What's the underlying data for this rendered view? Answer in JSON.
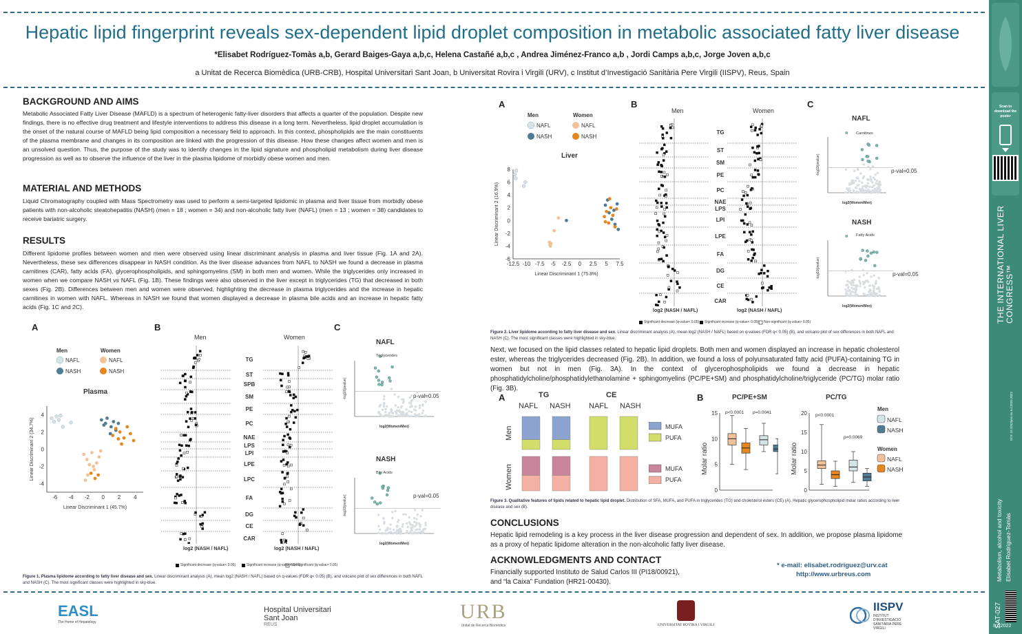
{
  "poster": {
    "title": "Hepatic lipid fingerprint reveals sex-dependent lipid droplet composition in metabolic associated fatty liver disease",
    "authors": "*Elisabet Rodríguez-Tomàs a,b, Gerard Baiges-Gaya a,b,c, Helena Castañé a,b,c , Andrea Jiménez-Franco a,b , Jordi Camps a,b,c, Jorge Joven a,b,c",
    "affiliations": "a Unitat de Recerca Biomèdica (URB-CRB), Hospital Universitari Sant Joan, b Universitat Rovira i Virgili (URV), c Institut d’Investigació Sanitària Pere Virgili (IISPV), Reus, Spain"
  },
  "sections": {
    "background": {
      "heading": "BACKGROUND AND AIMS",
      "text": "Metabolic Associated Fatty Liver Disease (MAFLD) is a spectrum of heterogenic fatty-liver disorders that affects a quarter of the population. Despite new findings, there is no effective drug treatment and lifestyle interventions to address this disease in a long term. Nevertheless, lipid droplet accumulation is the onset of the natural course of MAFLD being lipid composition a necessary field to approach. In this context, phospholipids are the main constituents of the plasma membrane and changes in its composition are linked with the progression of this disease. How these changes affect women and men is an unsolved question. Thus, the purpose of the study was to identify changes in the lipid signature and phospholipid metabolism during liver disease progression as well as to observe the influence of the liver in the plasma lipidome of morbidly obese women and men."
    },
    "methods": {
      "heading": "MATERIAL AND METHODS",
      "text": "Liquid Chromatography coupled with Mass Spectrometry was used to perform a semi-targeted lipidomic in plasma and liver tissue from morbidly obese patients with non-alcoholic steatohepatitis (NASH) (men = 18 ; women = 34) and non-alcoholic fatty liver (NAFL) (men = 13 ; women = 38) candidates to receive bariatric surgery."
    },
    "results": {
      "heading": "RESULTS",
      "text": "Different lipidome profiles between women and men were observed using linear discriminant analysis in plasma and liver tissue (Fig. 1A and 2A). Nevertheless, these sex differences disappear in NASH condition. As the liver disease advances from NAFL to NASH we found a decrease in plasma carnitines (CAR), fatty acids (FA), glycerophospholipids, and sphingomyelins (SM) in both men and women. While the triglycerides only increased in women when we compare NASH vs NAFL (Fig. 1B). These findings were also observed in the liver except in triglycerides (TG) that decreased in both sexes (Fig. 2B). Differences between men and women were observed, highlighting the decrease in plasma triglycerides and the increase in hepatic carnitines in women with NAFL. Whereas in NASH we found that women displayed a decrease in plasma bile acids and an increase in hepatic fatty acids (Fig. 1C and 2C)."
    },
    "next": "Next, we focused on the lipid classes related to hepatic lipid droplets. Both men and women displayed an increase in hepatic cholesterol ester, whereas the triglycerides decreased (Fig. 2B). In addition, we found a loss of polyunsaturated fatty acid (PUFA)-containing TG in women but not in men (Fig. 3A). In the context of glycerophospholipids we found a decrease in hepatic phosphatidylcholine/phosphatidylethanolamine + sphingomyelins (PC/PE+SM) and phosphatidylcholine/triglyceride (PC/TG) molar ratio (Fig. 3B).",
    "conclusions": {
      "heading": "CONCLUSIONS",
      "text": "Hepatic lipid remodeling is a key process in the liver disease progression and dependent of sex. In addition, we propose plasma lipidome as a proxy of hepatic lipidome alteration in the non-alcoholic fatty liver disease."
    },
    "ack": {
      "heading": "ACKNOWLEDGMENTS AND CONTACT",
      "line1": "Financially supported Instituto de Salud Carlos III (PI18/00921),",
      "line2": "and “la Caixa” Fundation (HR21-00430).",
      "email": "* e-mail: elisabet.rodriguez@urv.cat",
      "web": "http://www.urbreus.com"
    }
  },
  "fig1": {
    "panels": [
      "A",
      "B",
      "C"
    ],
    "legend_men": "Men",
    "legend_women": "Women",
    "nafl": "NAFL",
    "nash": "NASH",
    "title": "Plasma",
    "xlabel": "Linear Discriminant 1 (45.7%)",
    "ylabel": "Linear Discriminant 2 (34.7%)",
    "b_men": "Men",
    "b_women": "Women",
    "b_xlabel": "log2 (NASH / NAFL)",
    "classes": [
      "TG",
      "ST",
      "SPB",
      "SM",
      "PE",
      "PC",
      "NAE",
      "LPS",
      "LPI",
      "LPE",
      "LPC",
      "FA",
      "DG",
      "CE",
      "CAR"
    ],
    "volcano_nafl_title": "NAFL",
    "volcano_nafl_legend": "Triglycerides",
    "volcano_nash_title": "NASH",
    "volcano_nash_legend": "Bile Acids",
    "pval": "p-val=0.05",
    "volcano_xlabel": "log2(Women/Men)",
    "volcano_ylabel": "-log10(pvalue)",
    "key": [
      "Significant decrease (q-value< 0.05)",
      "Significant increase (q-value< 0.05)",
      "Non-significant (q-value> 0.05)"
    ],
    "caption_bold": "Figure 1. Plasma lipidome according to fatty liver disease and sex.",
    "caption": "Linear discriminant analysis (A), mean log2 (NASH / NAFL) based on q-values (FDR q< 0.05) (B), and volcano plot of sex differences in both NAFL and NASH (C). The most significant classes were highlighted in sky-blue."
  },
  "fig2": {
    "title": "Liver",
    "xlabel": "Linear Discriminant 1 (75.8%)",
    "ylabel": "Linear Discriminant 2 (16.9%)",
    "classes": [
      "TG",
      "ST",
      "SM",
      "PE",
      "PC",
      "NAE",
      "LPS",
      "LPI",
      "LPE",
      "FA",
      "DG",
      "CE",
      "CAR"
    ],
    "volcano_nafl_legend": "Carnitines",
    "volcano_nash_legend": "Fatty Acids",
    "caption_bold": "Figure 2. Liver lipidome according to fatty liver disease and sex.",
    "caption": "Linear discriminant analysis (A), mean log2 (NASH / NAFL) based on q-values (FDR q< 0.05) (B), and volcano plot of sex differences in both NAFL and NASH (C). The most significant classes were highlighted in sky-blue."
  },
  "fig3": {
    "tg": "TG",
    "ce": "CE",
    "nafl": "NAFL",
    "nash": "NASH",
    "men": "Men",
    "women": "Women",
    "mufa": "MUFA",
    "pufa": "PUFA",
    "b1_title": "PC/PE+SM",
    "b2_title": "PC/TG",
    "ylabel": "Molar ratio",
    "p1": "p<0.0001",
    "p2": "p=0.0041",
    "p3": "p<0.0001",
    "p4": "p=0.0069",
    "caption_bold": "Figure 3. Qualitative features of lipids related to hepatic lipid droplet.",
    "caption": "Distribution of SFA, MUFA, and PUFA in triglycerides (TG) and cholesterol esters (CE) (A). Hepatic glycerophospholipid molar ratios according to liver disease and sex (B)."
  },
  "chart_data": [
    {
      "type": "scatter",
      "title": "Plasma",
      "xlabel": "Linear Discriminant 1 (45.7%)",
      "ylabel": "Linear Discriminant 2 (34.7%)",
      "xlim": [
        -7,
        5
      ],
      "ylim": [
        -5,
        5
      ],
      "series": [
        {
          "name": "Men NAFL",
          "x": [
            -6.4,
            -6.1,
            -5.8,
            -5.5,
            -5.3,
            -4.0,
            -5.0
          ],
          "y": [
            3.6,
            3.2,
            3.8,
            3.4,
            3.9,
            3.1,
            2.6
          ]
        },
        {
          "name": "Men NASH",
          "x": [
            -0.2,
            0.3,
            0.5,
            1.0,
            1.3,
            1.6,
            0.9,
            0.1,
            1.9
          ],
          "y": [
            3.4,
            3.0,
            3.6,
            2.6,
            3.2,
            2.2,
            1.8,
            2.8,
            3.0
          ]
        },
        {
          "name": "Women NAFL",
          "x": [
            -2.4,
            -2.0,
            -1.7,
            -1.4,
            -1.1,
            -0.8,
            -0.5,
            -1.9,
            -2.2,
            -1.2,
            -0.3
          ],
          "y": [
            -0.6,
            -1.2,
            -1.8,
            -0.4,
            -2.4,
            -1.6,
            -0.9,
            -3.0,
            -3.6,
            -2.0,
            -0.2
          ]
        },
        {
          "name": "Women NASH",
          "x": [
            1.2,
            1.6,
            2.1,
            2.6,
            3.0,
            3.4,
            3.8,
            2.3,
            1.9,
            -0.6,
            -1.0,
            -1.5
          ],
          "y": [
            1.6,
            2.4,
            2.0,
            1.3,
            2.6,
            1.8,
            1.0,
            0.6,
            1.2,
            -3.0,
            -3.4,
            -2.8
          ]
        }
      ]
    },
    {
      "type": "scatter",
      "title": "Liver",
      "xlabel": "Linear Discriminant 1 (75.8%)",
      "ylabel": "Linear Discriminant 2 (16.9%)",
      "xlim": [
        -12.5,
        7.5
      ],
      "ylim": [
        -6,
        8
      ],
      "series": [
        {
          "name": "Men NAFL",
          "x": [
            -12.2,
            -12.0,
            -11.9,
            -10.5,
            -10.2
          ],
          "y": [
            7.2,
            6.6,
            7.8,
            5.4,
            6.0
          ]
        },
        {
          "name": "Men NASH",
          "x": [
            -2.5,
            4.8,
            5.5,
            6.0,
            6.6,
            7.2,
            5.2,
            6.4,
            7.0
          ],
          "y": [
            0.0,
            2.4,
            1.2,
            0.2,
            -0.6,
            -1.4,
            3.2,
            1.6,
            2.6
          ]
        },
        {
          "name": "Women NAFL",
          "x": [
            -5.7,
            -5.6,
            -5.4,
            -5.5,
            -4.8,
            -4.0
          ],
          "y": [
            -3.4,
            -3.8,
            -3.6,
            -4.0,
            -1.6,
            0.4
          ]
        },
        {
          "name": "Women NASH",
          "x": [
            4.6,
            5.0,
            5.4,
            5.8,
            6.2,
            6.6,
            5.6,
            6.9,
            4.8
          ],
          "y": [
            0.6,
            1.4,
            -0.4,
            2.0,
            0.8,
            -1.0,
            3.4,
            1.8,
            -0.2
          ]
        }
      ]
    },
    {
      "type": "bar",
      "title": "TG",
      "categories": [
        "Men NAFL",
        "Men NASH",
        "Women NAFL",
        "Women NASH"
      ],
      "series": [
        {
          "name": "MUFA",
          "values": [
            0.7,
            0.7,
            0.55,
            0.55
          ]
        },
        {
          "name": "PUFA",
          "values": [
            0.3,
            0.3,
            0.3,
            0.22
          ]
        }
      ]
    },
    {
      "type": "bar",
      "title": "CE",
      "categories": [
        "Men NAFL",
        "Men NASH",
        "Women NAFL",
        "Women NASH"
      ],
      "series": [
        {
          "name": "PUFA",
          "values": [
            1.0,
            1.0,
            1.0,
            1.0
          ]
        }
      ]
    },
    {
      "type": "box",
      "title": "PC/PE+SM",
      "ylabel": "Molar ratio",
      "ylim": [
        0,
        15
      ],
      "series": [
        {
          "name": "Women NAFL",
          "min": 5,
          "q1": 8.8,
          "median": 10.0,
          "q3": 11.0,
          "max": 14.5
        },
        {
          "name": "Women NASH",
          "min": 4,
          "q1": 7.2,
          "median": 8.2,
          "q3": 9.2,
          "max": 12.0
        },
        {
          "name": "Men NAFL",
          "min": 7.5,
          "q1": 8.8,
          "median": 9.8,
          "q3": 10.6,
          "max": 13.0
        },
        {
          "name": "Men NASH",
          "min": 3.2,
          "q1": 7.5,
          "median": 8.0,
          "q3": 8.8,
          "max": 10.0
        }
      ]
    },
    {
      "type": "box",
      "title": "PC/TG",
      "ylabel": "Molar ratio",
      "ylim": [
        0,
        20
      ],
      "series": [
        {
          "name": "Women NAFL",
          "min": 1.5,
          "q1": 5.6,
          "median": 6.5,
          "q3": 7.6,
          "max": 17
        },
        {
          "name": "Women NASH",
          "min": 1.0,
          "q1": 3.0,
          "median": 4.0,
          "q3": 5.0,
          "max": 7.5
        },
        {
          "name": "Men NAFL",
          "min": 2.0,
          "q1": 5.0,
          "median": 6.0,
          "q3": 7.8,
          "max": 10.0
        },
        {
          "name": "Men NASH",
          "min": 1.0,
          "q1": 2.4,
          "median": 3.4,
          "q3": 4.4,
          "max": 5.6
        }
      ]
    }
  ],
  "sidebar": {
    "scan": "Scan to download the poster",
    "congress": "THE INTERNATIONAL LIVER CONGRESS™",
    "topic": "Metabolism, alcohol and toxicity",
    "presenter": "Elisabet Rodríguez-Tomàs",
    "code": "SAT-027",
    "year": "ILC2022",
    "doi": "DOI: 10.3252/pso.eu.ILC2022.2022"
  },
  "logos": {
    "easl": "EASL",
    "easl_sub": "The Home of Hepatology",
    "hosp1": "Hospital Universitari",
    "hosp2": "Sant Joan",
    "hosp3": "REUS",
    "urb": "URB",
    "urb_sub": "Unitat de Recerca Biomèdica",
    "urv": "UNIVERSITAT ROVIRA I VIRGILI",
    "iispv": "IISPV",
    "iispv_sub": "INSTITUT D'INVESTIGACIÓ SANITÀRIA PERE VIRGILI"
  },
  "colors": {
    "title": "#1f6e8a",
    "men_nafl": "#d6e4e8",
    "men_nash": "#4f7b95",
    "women_nafl": "#f1c197",
    "women_nash": "#e5871f",
    "mufa": "#8da3cf",
    "pufa_tg": "#d3dd6a",
    "pufa_ce": "#f4b1a3",
    "mufa_w": "#c8859b",
    "sidebar": "#3d8a78"
  }
}
